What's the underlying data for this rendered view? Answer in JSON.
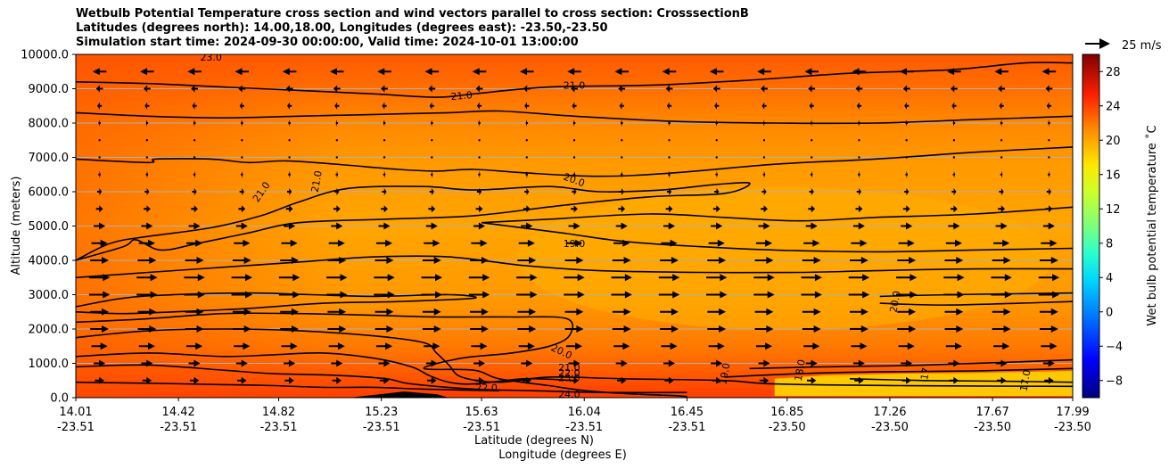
{
  "title_lines": [
    "Wetbulb Potential Temperature cross section and wind vectors parallel to cross section: CrosssectionB",
    "Latitudes (degrees north): 14.00,18.00, Longitudes (degrees east): -23.50,-23.50",
    "Simulation start time: 2024-09-30 00:00:00, Valid time: 2024-10-01 13:00:00"
  ],
  "quiver_key_label": "25 m/s",
  "colors": {
    "contour": "#000000",
    "grid": "#b0b0b0",
    "field_surface": "#ff3c00",
    "field_upper": "#ff6a00",
    "field_mid": "#ffa200",
    "field_core": "#ffb000",
    "field_low_yellow": "#ffd000"
  },
  "chart_data": {
    "type": "heatmap",
    "ylabel": "Altitude (meters)",
    "xlabel_lines": [
      "Latitude (degrees N)",
      "Longitude (degrees E)"
    ],
    "ylim": [
      0,
      10000
    ],
    "yticks": [
      "0.0",
      "1000.0",
      "2000.0",
      "3000.0",
      "4000.0",
      "5000.0",
      "6000.0",
      "7000.0",
      "8000.0",
      "9000.0",
      "10000.0"
    ],
    "xlim": [
      14.01,
      17.99
    ],
    "xticks": [
      {
        "lat": "14.01",
        "lon": "-23.51"
      },
      {
        "lat": "14.42",
        "lon": "-23.51"
      },
      {
        "lat": "14.82",
        "lon": "-23.51"
      },
      {
        "lat": "15.23",
        "lon": "-23.51"
      },
      {
        "lat": "15.63",
        "lon": "-23.51"
      },
      {
        "lat": "16.04",
        "lon": "-23.51"
      },
      {
        "lat": "16.45",
        "lon": "-23.51"
      },
      {
        "lat": "16.85",
        "lon": "-23.50"
      },
      {
        "lat": "17.26",
        "lon": "-23.50"
      },
      {
        "lat": "17.67",
        "lon": "-23.50"
      },
      {
        "lat": "17.99",
        "lon": "-23.50"
      }
    ],
    "grid": "horizontal",
    "colorbar": {
      "label": "Wet bulb potential temperature ˚C",
      "ticks": [
        "−8",
        "−4",
        "0",
        "4",
        "8",
        "12",
        "16",
        "20",
        "24",
        "28"
      ],
      "range": [
        -10,
        30
      ]
    },
    "contour_labels": [
      {
        "text": "21.0",
        "lat": 16.0,
        "alt": 9100,
        "rot": 0
      },
      {
        "text": "21.0",
        "lat": 15.55,
        "alt": 8800,
        "rot": -5
      },
      {
        "text": "23.0",
        "lat": 14.55,
        "alt": 9920,
        "rot": 0
      },
      {
        "text": "21.0",
        "lat": 14.75,
        "alt": 6000,
        "rot": -55
      },
      {
        "text": "21.0",
        "lat": 14.97,
        "alt": 6300,
        "rot": -80
      },
      {
        "text": "20.0",
        "lat": 16.0,
        "alt": 6350,
        "rot": 20
      },
      {
        "text": "19.0",
        "lat": 16.0,
        "alt": 4500,
        "rot": 0
      },
      {
        "text": "20.0",
        "lat": 17.28,
        "alt": 2800,
        "rot": -80
      },
      {
        "text": "20.0",
        "lat": 15.95,
        "alt": 1350,
        "rot": 25
      },
      {
        "text": "21.0",
        "lat": 15.98,
        "alt": 880,
        "rot": 0
      },
      {
        "text": "22.0",
        "lat": 15.98,
        "alt": 730,
        "rot": 0
      },
      {
        "text": "23.0",
        "lat": 15.98,
        "alt": 580,
        "rot": 0
      },
      {
        "text": "22.0",
        "lat": 15.65,
        "alt": 300,
        "rot": 0
      },
      {
        "text": "24.0",
        "lat": 15.98,
        "alt": 100,
        "rot": 0
      },
      {
        "text": "19.0",
        "lat": 16.6,
        "alt": 700,
        "rot": -80
      },
      {
        "text": "18.0",
        "lat": 16.9,
        "alt": 800,
        "rot": -80
      },
      {
        "text": "17",
        "lat": 17.4,
        "alt": 700,
        "rot": -80
      },
      {
        "text": "17.0",
        "lat": 17.8,
        "alt": 500,
        "rot": -80
      }
    ],
    "contours": [
      {
        "level": 21,
        "points": [
          [
            14.01,
            9200
          ],
          [
            14.3,
            9150
          ],
          [
            14.6,
            9050
          ],
          [
            14.9,
            8950
          ],
          [
            15.2,
            8850
          ],
          [
            15.45,
            8750
          ],
          [
            15.6,
            8850
          ],
          [
            15.9,
            9050
          ],
          [
            16.3,
            9100
          ],
          [
            16.7,
            9250
          ],
          [
            17.1,
            9450
          ],
          [
            17.5,
            9550
          ],
          [
            17.8,
            9750
          ],
          [
            17.99,
            9750
          ]
        ]
      },
      {
        "level": 21,
        "points": [
          [
            14.01,
            8300
          ],
          [
            14.3,
            8200
          ],
          [
            14.6,
            8150
          ],
          [
            14.9,
            8200
          ],
          [
            15.2,
            8250
          ],
          [
            15.5,
            8300
          ],
          [
            15.7,
            8350
          ],
          [
            16.0,
            8200
          ],
          [
            16.4,
            8050
          ],
          [
            16.8,
            8000
          ],
          [
            17.2,
            8000
          ],
          [
            17.6,
            8100
          ],
          [
            17.99,
            8200
          ]
        ]
      },
      {
        "level": 21,
        "points": [
          [
            14.01,
            6950
          ],
          [
            14.3,
            6850
          ],
          [
            14.33,
            6950
          ],
          [
            14.55,
            6950
          ],
          [
            14.7,
            6850
          ],
          [
            14.85,
            6900
          ],
          [
            15.05,
            6800
          ],
          [
            15.3,
            6650
          ],
          [
            15.45,
            6600
          ],
          [
            15.6,
            6650
          ],
          [
            15.8,
            6550
          ],
          [
            16.1,
            6450
          ],
          [
            16.4,
            6550
          ],
          [
            16.8,
            6800
          ],
          [
            17.2,
            6950
          ],
          [
            17.6,
            7150
          ],
          [
            17.99,
            7300
          ]
        ]
      },
      {
        "level": 20,
        "points": [
          [
            14.01,
            4000
          ],
          [
            14.15,
            4500
          ],
          [
            14.3,
            4700
          ],
          [
            14.55,
            4950
          ],
          [
            14.75,
            5300
          ],
          [
            14.9,
            5700
          ],
          [
            15.1,
            6100
          ],
          [
            15.4,
            6150
          ],
          [
            15.6,
            6050
          ],
          [
            15.9,
            6150
          ],
          [
            16.1,
            6000
          ],
          [
            16.35,
            6050
          ],
          [
            16.55,
            6200
          ],
          [
            16.7,
            6250
          ],
          [
            16.6,
            5950
          ],
          [
            16.3,
            5850
          ],
          [
            15.95,
            5600
          ],
          [
            15.6,
            5300
          ],
          [
            15.25,
            5200
          ],
          [
            14.9,
            5100
          ],
          [
            14.7,
            4800
          ],
          [
            14.5,
            4500
          ],
          [
            14.35,
            4300
          ],
          [
            14.25,
            4600
          ],
          [
            14.2,
            4400
          ],
          [
            14.01,
            4000
          ]
        ]
      },
      {
        "level": 19,
        "points": [
          [
            15.63,
            5100
          ],
          [
            15.9,
            5200
          ],
          [
            16.3,
            5350
          ],
          [
            16.6,
            5250
          ],
          [
            16.9,
            5150
          ],
          [
            17.2,
            5250
          ],
          [
            17.6,
            5350
          ],
          [
            17.99,
            5550
          ]
        ]
      },
      {
        "level": 19,
        "points": [
          [
            15.63,
            5100
          ],
          [
            15.95,
            4800
          ],
          [
            16.2,
            4550
          ],
          [
            16.5,
            4400
          ],
          [
            16.8,
            4300
          ],
          [
            17.2,
            4250
          ],
          [
            17.6,
            4300
          ],
          [
            17.99,
            4350
          ]
        ]
      },
      {
        "level": 20,
        "points": [
          [
            14.01,
            3500
          ],
          [
            14.3,
            3650
          ],
          [
            14.6,
            3800
          ],
          [
            14.9,
            3950
          ],
          [
            15.2,
            4100
          ],
          [
            15.5,
            4100
          ],
          [
            15.8,
            3850
          ],
          [
            16.1,
            3700
          ],
          [
            16.5,
            3650
          ],
          [
            16.9,
            3650
          ],
          [
            17.2,
            3700
          ],
          [
            17.6,
            3750
          ],
          [
            17.99,
            3750
          ]
        ]
      },
      {
        "level": 20,
        "points": [
          [
            17.22,
            2950
          ],
          [
            17.5,
            3000
          ],
          [
            17.99,
            3050
          ]
        ]
      },
      {
        "level": 20,
        "points": [
          [
            17.22,
            2750
          ],
          [
            17.5,
            2700
          ],
          [
            17.99,
            2800
          ]
        ]
      },
      {
        "level": 21,
        "points": [
          [
            14.01,
            2650
          ],
          [
            14.2,
            2900
          ],
          [
            14.4,
            3000
          ],
          [
            14.7,
            3050
          ],
          [
            14.95,
            3000
          ],
          [
            15.2,
            2950
          ],
          [
            15.5,
            3000
          ],
          [
            15.6,
            2900
          ],
          [
            15.3,
            2800
          ],
          [
            15.0,
            2750
          ],
          [
            14.7,
            2600
          ],
          [
            14.4,
            2500
          ],
          [
            14.2,
            2450
          ],
          [
            14.01,
            2500
          ]
        ]
      },
      {
        "level": 20,
        "points": [
          [
            14.01,
            2200
          ],
          [
            14.3,
            2300
          ],
          [
            14.6,
            2450
          ],
          [
            14.9,
            2450
          ],
          [
            15.2,
            2400
          ],
          [
            15.45,
            2350
          ],
          [
            15.75,
            2350
          ],
          [
            15.97,
            2300
          ],
          [
            15.98,
            1800
          ],
          [
            15.9,
            1500
          ],
          [
            15.75,
            1300
          ],
          [
            15.55,
            1150
          ],
          [
            15.4,
            850
          ],
          [
            15.6,
            800
          ],
          [
            15.7,
            550
          ],
          [
            15.9,
            350
          ],
          [
            16.05,
            200
          ],
          [
            16.25,
            100
          ],
          [
            16.4,
            60
          ],
          [
            16.45,
            30
          ]
        ]
      },
      {
        "level": 21,
        "points": [
          [
            14.01,
            1750
          ],
          [
            14.3,
            1950
          ],
          [
            14.6,
            2000
          ],
          [
            14.9,
            1950
          ],
          [
            15.2,
            1800
          ],
          [
            15.4,
            1600
          ],
          [
            15.45,
            1300
          ],
          [
            15.5,
            950
          ],
          [
            15.55,
            600
          ],
          [
            15.7,
            450
          ],
          [
            15.9,
            600
          ],
          [
            16.2,
            550
          ],
          [
            16.6,
            500
          ],
          [
            16.8,
            400
          ],
          [
            17.3,
            350
          ],
          [
            17.99,
            330
          ]
        ]
      },
      {
        "level": 22,
        "points": [
          [
            14.01,
            1200
          ],
          [
            14.3,
            1300
          ],
          [
            14.6,
            1200
          ],
          [
            14.8,
            1250
          ],
          [
            15.0,
            1300
          ],
          [
            15.2,
            1150
          ],
          [
            15.35,
            900
          ],
          [
            15.42,
            650
          ],
          [
            15.5,
            450
          ],
          [
            15.6,
            400
          ],
          [
            15.8,
            550
          ],
          [
            16.0,
            500
          ]
        ]
      },
      {
        "level": 23,
        "points": [
          [
            14.01,
            900
          ],
          [
            14.3,
            950
          ],
          [
            14.6,
            800
          ],
          [
            14.8,
            700
          ],
          [
            15.05,
            650
          ],
          [
            15.25,
            550
          ],
          [
            15.35,
            400
          ],
          [
            15.6,
            250
          ],
          [
            15.85,
            200
          ],
          [
            16.1,
            150
          ],
          [
            16.45,
            150
          ]
        ]
      },
      {
        "level": 24,
        "points": [
          [
            14.01,
            450
          ],
          [
            14.3,
            420
          ],
          [
            14.6,
            380
          ],
          [
            14.8,
            350
          ],
          [
            15.0,
            300
          ],
          [
            15.2,
            300
          ],
          [
            15.4,
            250
          ],
          [
            15.7,
            200
          ]
        ]
      },
      {
        "level": 19,
        "points": [
          [
            16.7,
            850
          ],
          [
            17.0,
            900
          ],
          [
            17.4,
            950
          ],
          [
            17.99,
            1100
          ]
        ]
      },
      {
        "level": 18,
        "points": [
          [
            16.6,
            600
          ],
          [
            16.9,
            700
          ],
          [
            17.2,
            750
          ],
          [
            17.6,
            780
          ],
          [
            17.99,
            850
          ]
        ]
      },
      {
        "level": 17,
        "points": [
          [
            17.1,
            550
          ],
          [
            17.4,
            500
          ],
          [
            17.7,
            480
          ],
          [
            17.99,
            450
          ]
        ]
      }
    ],
    "terrain": [
      [
        15.1,
        0
      ],
      [
        15.25,
        120
      ],
      [
        15.32,
        180
      ],
      [
        15.45,
        100
      ],
      [
        15.5,
        0
      ]
    ],
    "wind_vectors": {
      "note_units": "m/s",
      "levels": [
        {
          "alt": 9500,
          "u": -6
        },
        {
          "alt": 9000,
          "u": -3
        },
        {
          "alt": 8500,
          "u": -2
        },
        {
          "alt": 8000,
          "u": -1
        },
        {
          "alt": 7500,
          "u": 0
        },
        {
          "alt": 7000,
          "u": 0
        },
        {
          "alt": 6500,
          "u": 1
        },
        {
          "alt": 6000,
          "u": 2
        },
        {
          "alt": 5500,
          "u": 3
        },
        {
          "alt": 5000,
          "u": 5
        },
        {
          "alt": 4500,
          "u": 7
        },
        {
          "alt": 4000,
          "u": 8
        },
        {
          "alt": 3500,
          "u": 9
        },
        {
          "alt": 3000,
          "u": 9
        },
        {
          "alt": 2500,
          "u": 8
        },
        {
          "alt": 2000,
          "u": 8
        },
        {
          "alt": 1500,
          "u": 7
        },
        {
          "alt": 1000,
          "u": 5
        },
        {
          "alt": 500,
          "u": 4
        }
      ]
    }
  }
}
